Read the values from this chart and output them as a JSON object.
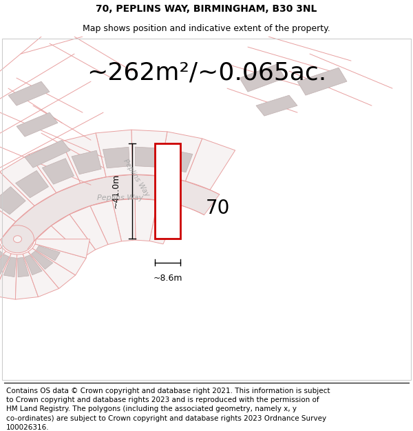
{
  "title_line1": "70, PEPLINS WAY, BIRMINGHAM, B30 3NL",
  "title_line2": "Map shows position and indicative extent of the property.",
  "area_text": "~262m²/~0.065ac.",
  "dim_height": "~41.0m",
  "dim_width": "~8.6m",
  "label_70": "70",
  "street_label": "Peplins Way",
  "street_label_diagonal": "Peplins Way",
  "footer_lines": [
    "Contains OS data © Crown copyright and database right 2021. This information is subject",
    "to Crown copyright and database rights 2023 and is reproduced with the permission of",
    "HM Land Registry. The polygons (including the associated geometry, namely x, y",
    "co-ordinates) are subject to Crown copyright and database rights 2023 Ordnance Survey",
    "100026316."
  ],
  "bg_color": "#ffffff",
  "map_bg": "#f7f3f3",
  "plot_stroke": "#cc0000",
  "cadastral_color": "#e8a0a0",
  "road_color": "#d4b8b8",
  "building_fill": "#d0c8c8",
  "building_edge": "#c0b0b0",
  "title_fontsize": 10,
  "subtitle_fontsize": 9,
  "area_fontsize": 26,
  "label_fontsize": 20,
  "dim_fontsize": 9,
  "footer_fontsize": 7.5
}
